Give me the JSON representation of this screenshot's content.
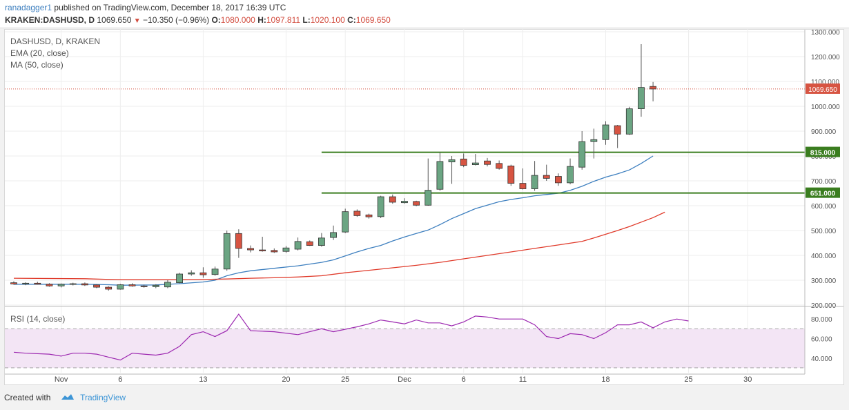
{
  "header": {
    "author": "ranadagger1",
    "published_text": "published on TradingView.com, December 18, 2017 16:39 UTC",
    "symbol": "KRAKEN:DASHUSD, D",
    "last_price": "1069.650",
    "change": "−10.350 (−0.96%)",
    "o_label": "O:",
    "o_value": "1080.000",
    "h_label": "H:",
    "h_value": "1097.811",
    "l_label": "L:",
    "l_value": "1020.100",
    "c_label": "C:",
    "c_value": "1069.650"
  },
  "legend": {
    "title": "DASHUSD, D, KRAKEN",
    "ema": "EMA (20, close)",
    "ma": "MA (50, close)",
    "rsi": "RSI (14, close)"
  },
  "footer": {
    "created_with": "Created with",
    "brand": "TradingView"
  },
  "colors": {
    "up": "#6ba583",
    "down": "#d75442",
    "ema": "#3d7fbf",
    "ma": "#e03a2a",
    "level": "#3a7d1f",
    "rsi": "#9c27b0",
    "rsi_band": "#f3e5f5"
  },
  "chart_data": [
    {
      "type": "candlestick",
      "title": "DASHUSD, D, KRAKEN",
      "ylim": [
        200,
        1300
      ],
      "yticks": [
        200,
        300,
        400,
        500,
        600,
        700,
        800,
        900,
        1000,
        1100,
        1200,
        1300
      ],
      "ytick_labels": [
        "200.000",
        "300.000",
        "400.000",
        "500.000",
        "600.000",
        "700.000",
        "800.000",
        "900.000",
        "1000.000",
        "1100.000",
        "1200.000",
        "1300.000"
      ],
      "x_ticks": [
        {
          "day": 4,
          "label": "Nov"
        },
        {
          "day": 9,
          "label": "6"
        },
        {
          "day": 16,
          "label": "13"
        },
        {
          "day": 23,
          "label": "20"
        },
        {
          "day": 28,
          "label": "25"
        },
        {
          "day": 33,
          "label": "Dec"
        },
        {
          "day": 38,
          "label": "6"
        },
        {
          "day": 43,
          "label": "11"
        },
        {
          "day": 50,
          "label": "18"
        },
        {
          "day": 57,
          "label": "25"
        },
        {
          "day": 62,
          "label": "30"
        }
      ],
      "candles": [
        {
          "day": 0,
          "o": 290,
          "h": 296,
          "l": 282,
          "c": 285
        },
        {
          "day": 1,
          "o": 285,
          "h": 292,
          "l": 280,
          "c": 288
        },
        {
          "day": 2,
          "o": 288,
          "h": 294,
          "l": 282,
          "c": 284
        },
        {
          "day": 3,
          "o": 284,
          "h": 288,
          "l": 274,
          "c": 277
        },
        {
          "day": 4,
          "o": 277,
          "h": 287,
          "l": 271,
          "c": 284
        },
        {
          "day": 5,
          "o": 284,
          "h": 290,
          "l": 279,
          "c": 286
        },
        {
          "day": 6,
          "o": 286,
          "h": 291,
          "l": 277,
          "c": 281
        },
        {
          "day": 7,
          "o": 281,
          "h": 284,
          "l": 268,
          "c": 272
        },
        {
          "day": 8,
          "o": 272,
          "h": 276,
          "l": 258,
          "c": 264
        },
        {
          "day": 9,
          "o": 264,
          "h": 285,
          "l": 262,
          "c": 282
        },
        {
          "day": 10,
          "o": 282,
          "h": 288,
          "l": 274,
          "c": 277
        },
        {
          "day": 11,
          "o": 277,
          "h": 282,
          "l": 270,
          "c": 274
        },
        {
          "day": 12,
          "o": 274,
          "h": 284,
          "l": 268,
          "c": 280
        },
        {
          "day": 13,
          "o": 273,
          "h": 300,
          "l": 268,
          "c": 292
        },
        {
          "day": 14,
          "o": 290,
          "h": 330,
          "l": 288,
          "c": 325
        },
        {
          "day": 15,
          "o": 325,
          "h": 340,
          "l": 318,
          "c": 330
        },
        {
          "day": 16,
          "o": 330,
          "h": 352,
          "l": 310,
          "c": 322
        },
        {
          "day": 17,
          "o": 323,
          "h": 355,
          "l": 318,
          "c": 345
        },
        {
          "day": 18,
          "o": 345,
          "h": 500,
          "l": 338,
          "c": 488
        },
        {
          "day": 19,
          "o": 488,
          "h": 505,
          "l": 390,
          "c": 428
        },
        {
          "day": 20,
          "o": 428,
          "h": 440,
          "l": 412,
          "c": 422
        },
        {
          "day": 21,
          "o": 422,
          "h": 475,
          "l": 415,
          "c": 418
        },
        {
          "day": 22,
          "o": 420,
          "h": 428,
          "l": 410,
          "c": 414
        },
        {
          "day": 23,
          "o": 416,
          "h": 438,
          "l": 410,
          "c": 430
        },
        {
          "day": 24,
          "o": 425,
          "h": 472,
          "l": 420,
          "c": 456
        },
        {
          "day": 25,
          "o": 455,
          "h": 460,
          "l": 438,
          "c": 440
        },
        {
          "day": 26,
          "o": 440,
          "h": 490,
          "l": 435,
          "c": 470
        },
        {
          "day": 27,
          "o": 472,
          "h": 520,
          "l": 462,
          "c": 492
        },
        {
          "day": 28,
          "o": 494,
          "h": 588,
          "l": 490,
          "c": 576
        },
        {
          "day": 29,
          "o": 578,
          "h": 585,
          "l": 555,
          "c": 560
        },
        {
          "day": 30,
          "o": 563,
          "h": 568,
          "l": 548,
          "c": 555
        },
        {
          "day": 31,
          "o": 556,
          "h": 640,
          "l": 550,
          "c": 636
        },
        {
          "day": 32,
          "o": 636,
          "h": 645,
          "l": 608,
          "c": 614
        },
        {
          "day": 33,
          "o": 612,
          "h": 630,
          "l": 608,
          "c": 618
        },
        {
          "day": 34,
          "o": 617,
          "h": 620,
          "l": 598,
          "c": 602
        },
        {
          "day": 35,
          "o": 602,
          "h": 790,
          "l": 600,
          "c": 662
        },
        {
          "day": 36,
          "o": 666,
          "h": 815,
          "l": 660,
          "c": 778
        },
        {
          "day": 37,
          "o": 776,
          "h": 800,
          "l": 688,
          "c": 785
        },
        {
          "day": 38,
          "o": 788,
          "h": 810,
          "l": 755,
          "c": 762
        },
        {
          "day": 39,
          "o": 765,
          "h": 808,
          "l": 762,
          "c": 772
        },
        {
          "day": 40,
          "o": 780,
          "h": 792,
          "l": 758,
          "c": 766
        },
        {
          "day": 41,
          "o": 770,
          "h": 782,
          "l": 745,
          "c": 750
        },
        {
          "day": 42,
          "o": 760,
          "h": 765,
          "l": 680,
          "c": 690
        },
        {
          "day": 43,
          "o": 690,
          "h": 750,
          "l": 665,
          "c": 668
        },
        {
          "day": 44,
          "o": 668,
          "h": 780,
          "l": 660,
          "c": 722
        },
        {
          "day": 45,
          "o": 722,
          "h": 765,
          "l": 700,
          "c": 710
        },
        {
          "day": 46,
          "o": 718,
          "h": 730,
          "l": 680,
          "c": 692
        },
        {
          "day": 47,
          "o": 692,
          "h": 790,
          "l": 686,
          "c": 758
        },
        {
          "day": 48,
          "o": 755,
          "h": 900,
          "l": 745,
          "c": 858
        },
        {
          "day": 49,
          "o": 858,
          "h": 910,
          "l": 790,
          "c": 866
        },
        {
          "day": 50,
          "o": 866,
          "h": 940,
          "l": 845,
          "c": 925
        },
        {
          "day": 51,
          "o": 922,
          "h": 925,
          "l": 832,
          "c": 888
        },
        {
          "day": 52,
          "o": 888,
          "h": 998,
          "l": 885,
          "c": 990
        },
        {
          "day": 53,
          "o": 990,
          "h": 1250,
          "l": 958,
          "c": 1076
        },
        {
          "day": 54,
          "o": 1080,
          "h": 1097.811,
          "l": 1020.1,
          "c": 1069.65
        }
      ],
      "series": [
        {
          "name": "EMA (20, close)",
          "points": [
            [
              0,
              284
            ],
            [
              6,
              284
            ],
            [
              8,
              282
            ],
            [
              9,
              280
            ],
            [
              12,
              281
            ],
            [
              14,
              286
            ],
            [
              16,
              293
            ],
            [
              17,
              300
            ],
            [
              18,
              318
            ],
            [
              19,
              330
            ],
            [
              20,
              338
            ],
            [
              22,
              348
            ],
            [
              24,
              358
            ],
            [
              25,
              365
            ],
            [
              26,
              372
            ],
            [
              27,
              382
            ],
            [
              28,
              398
            ],
            [
              29,
              414
            ],
            [
              30,
              428
            ],
            [
              31,
              440
            ],
            [
              32,
              458
            ],
            [
              33,
              474
            ],
            [
              34,
              488
            ],
            [
              35,
              502
            ],
            [
              36,
              524
            ],
            [
              37,
              548
            ],
            [
              38,
              568
            ],
            [
              39,
              588
            ],
            [
              40,
              602
            ],
            [
              41,
              616
            ],
            [
              42,
              625
            ],
            [
              43,
              632
            ],
            [
              44,
              640
            ],
            [
              45,
              645
            ],
            [
              46,
              650
            ],
            [
              47,
              662
            ],
            [
              48,
              678
            ],
            [
              49,
              698
            ],
            [
              50,
              715
            ],
            [
              51,
              728
            ],
            [
              52,
              744
            ],
            [
              53,
              770
            ],
            [
              54,
              800
            ]
          ]
        },
        {
          "name": "MA (50, close)",
          "points": [
            [
              0,
              308
            ],
            [
              6,
              306
            ],
            [
              9,
              302
            ],
            [
              12,
              302
            ],
            [
              14,
              302
            ],
            [
              16,
              303
            ],
            [
              18,
              305
            ],
            [
              20,
              308
            ],
            [
              22,
              310
            ],
            [
              24,
              313
            ],
            [
              26,
              318
            ],
            [
              28,
              330
            ],
            [
              30,
              340
            ],
            [
              32,
              350
            ],
            [
              34,
              360
            ],
            [
              36,
              372
            ],
            [
              38,
              386
            ],
            [
              40,
              400
            ],
            [
              42,
              414
            ],
            [
              44,
              428
            ],
            [
              46,
              442
            ],
            [
              48,
              456
            ],
            [
              49,
              470
            ],
            [
              50,
              485
            ],
            [
              51,
              500
            ],
            [
              52,
              516
            ],
            [
              53,
              534
            ],
            [
              54,
              552
            ],
            [
              55,
              574
            ]
          ]
        }
      ],
      "levels": [
        {
          "value": 815,
          "label": "815.000",
          "from_day": 26
        },
        {
          "value": 651,
          "label": "651.000",
          "from_day": 26
        }
      ],
      "last_price": {
        "value": 1069.65,
        "label": "1069.650"
      }
    },
    {
      "type": "line",
      "title": "RSI (14, close)",
      "ylim": [
        25,
        90
      ],
      "yticks": [
        40,
        60,
        80
      ],
      "ytick_labels": [
        "40.000",
        "60.000",
        "80.000"
      ],
      "band": [
        30,
        70
      ],
      "series": [
        {
          "name": "RSI (14, close)",
          "points": [
            [
              0,
              46
            ],
            [
              1,
              45
            ],
            [
              3,
              44
            ],
            [
              4,
              42
            ],
            [
              5,
              45
            ],
            [
              6,
              45
            ],
            [
              7,
              44
            ],
            [
              8,
              41
            ],
            [
              9,
              38
            ],
            [
              10,
              45
            ],
            [
              11,
              44
            ],
            [
              12,
              43
            ],
            [
              13,
              45
            ],
            [
              14,
              52
            ],
            [
              15,
              64
            ],
            [
              16,
              67
            ],
            [
              17,
              62
            ],
            [
              18,
              68
            ],
            [
              19,
              85
            ],
            [
              20,
              68
            ],
            [
              22,
              67
            ],
            [
              24,
              64
            ],
            [
              26,
              70
            ],
            [
              27,
              67
            ],
            [
              29,
              72
            ],
            [
              30,
              75
            ],
            [
              31,
              79
            ],
            [
              32,
              77
            ],
            [
              33,
              75
            ],
            [
              34,
              79
            ],
            [
              35,
              76
            ],
            [
              36,
              76
            ],
            [
              37,
              73
            ],
            [
              38,
              77
            ],
            [
              39,
              83
            ],
            [
              40,
              82
            ],
            [
              41,
              80
            ],
            [
              42,
              80
            ],
            [
              43,
              80
            ],
            [
              44,
              74
            ],
            [
              45,
              62
            ],
            [
              46,
              60
            ],
            [
              47,
              65
            ],
            [
              48,
              64
            ],
            [
              49,
              60
            ],
            [
              50,
              66
            ],
            [
              51,
              74
            ],
            [
              52,
              74
            ],
            [
              53,
              77
            ],
            [
              54,
              71
            ],
            [
              55,
              77
            ],
            [
              56,
              80
            ],
            [
              57,
              78
            ]
          ]
        }
      ]
    }
  ]
}
